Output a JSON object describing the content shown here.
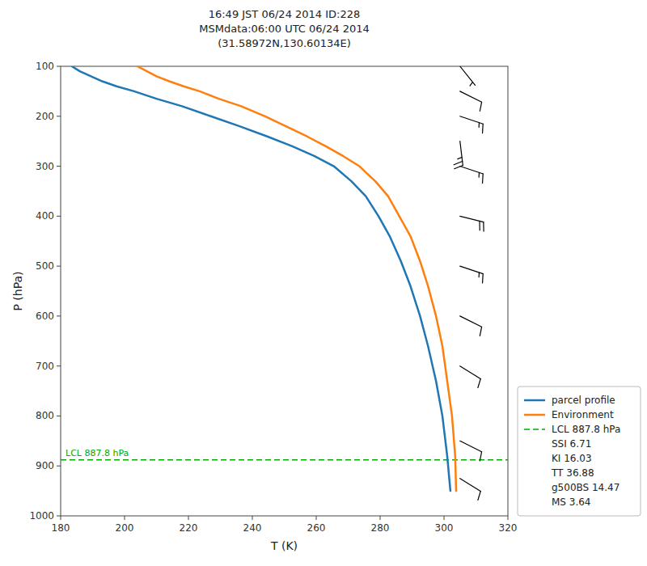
{
  "chart_data": {
    "type": "line",
    "title": "16:49 JST 06/24 2014  ID:228\nMSMdata:06:00 UTC 06/24 2014\n(31.58972N,130.60134E)",
    "xlabel": "T (K)",
    "ylabel": "P (hPa)",
    "xlim": [
      180,
      320
    ],
    "ylim": [
      1000,
      100
    ],
    "xticks": [
      180,
      200,
      220,
      240,
      260,
      280,
      300,
      320
    ],
    "yticks": [
      100,
      200,
      300,
      400,
      500,
      600,
      700,
      800,
      900,
      1000
    ],
    "grid": false,
    "legend": "lower right",
    "series": [
      {
        "name": "parcel profile",
        "color": "#1f77b4",
        "x": [
          183.5,
          186.0,
          189.5,
          193.0,
          197.5,
          203.0,
          210.0,
          218.0,
          227.0,
          236.0,
          244.5,
          252.5,
          259.5,
          265.5,
          271.0,
          275.5,
          279.5,
          283.0,
          286.5,
          289.5,
          292.5,
          295.0,
          297.5,
          299.5,
          301.0,
          302.0
        ],
        "values": [
          100,
          110,
          120,
          130,
          140,
          150,
          165,
          180,
          200,
          220,
          240,
          260,
          280,
          300,
          330,
          360,
          400,
          440,
          490,
          540,
          600,
          660,
          730,
          800,
          880,
          950
        ]
      },
      {
        "name": "Environment",
        "color": "#ff7f0e",
        "x": [
          204.0,
          207.0,
          210.0,
          214.0,
          218.5,
          223.5,
          229.5,
          236.5,
          244.0,
          250.5,
          257.0,
          263.0,
          268.5,
          273.5,
          278.5,
          282.5,
          286.0,
          289.5,
          292.5,
          295.0,
          297.5,
          299.5,
          301.0,
          302.5,
          303.5,
          303.8
        ],
        "values": [
          100,
          110,
          120,
          130,
          140,
          150,
          165,
          180,
          200,
          220,
          240,
          260,
          280,
          300,
          330,
          360,
          400,
          440,
          490,
          540,
          600,
          660,
          730,
          800,
          880,
          950
        ]
      }
    ],
    "hlines": [
      {
        "value": 887.8,
        "label": "LCL 887.8 hPa",
        "name": "LCL 887.8 hPa",
        "color": "#00aa00",
        "line_style": "dashed"
      }
    ],
    "legend_texts": [
      "SSI 6.71",
      "KI 16.03",
      "TT 36.88",
      "g500BS 14.47",
      "MS 3.64"
    ],
    "barbs": {
      "x": 305.0,
      "y": [
        100,
        150,
        200,
        250,
        300,
        400,
        500,
        600,
        700,
        850,
        925
      ],
      "u": [
        -4,
        -10,
        -15,
        -3,
        -15,
        -20,
        -15,
        -10,
        -8,
        -10,
        -8
      ],
      "v": [
        5,
        5,
        5,
        25,
        5,
        5,
        5,
        5,
        5,
        5,
        5
      ],
      "increments": {
        "half": 5,
        "full": 10,
        "flag": 50
      }
    }
  }
}
